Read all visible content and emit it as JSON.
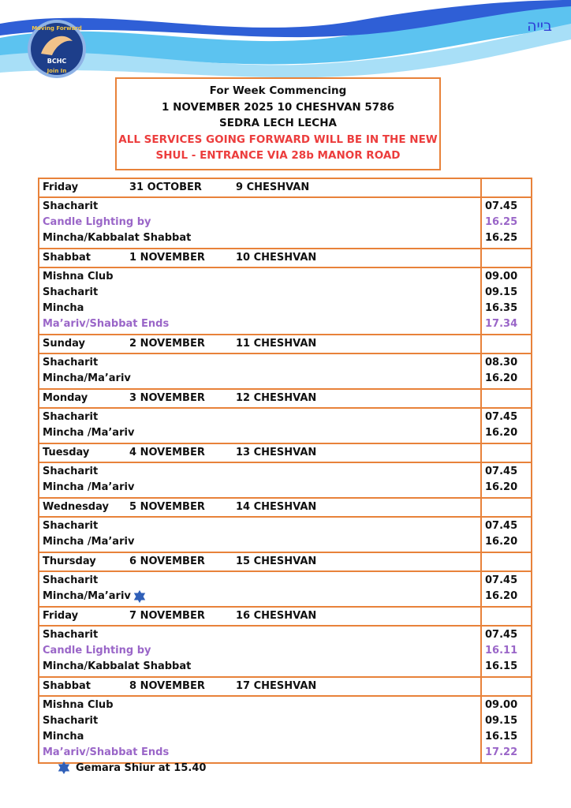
{
  "brand": {
    "hebrew": "בייה",
    "logo_top": "Moving Forward",
    "logo_middle": "BCHC",
    "logo_bottom": "Join In"
  },
  "header": {
    "title": "For Week Commencing",
    "dates": "1 NOVEMBER 2025  10 CHESHVAN 5786",
    "sedra": "SEDRA LECH LECHA",
    "notice": [
      "ALL SERVICES GOING FORWARD WILL BE IN THE NEW",
      "SHUL - ENTRANCE VIA 28b MANOR ROAD"
    ]
  },
  "days": [
    {
      "day": "Friday",
      "date": "31 OCTOBER",
      "hebrew_date": "9 CHESHVAN",
      "items": [
        {
          "name": "Shacharit",
          "time": "07.45"
        },
        {
          "name": "Candle Lighting by",
          "time": "16.25",
          "highlight": true
        },
        {
          "name": "Mincha/Kabbalat Shabbat",
          "time": "16.25"
        }
      ]
    },
    {
      "day": "Shabbat",
      "date": "1 NOVEMBER",
      "hebrew_date": "10 CHESHVAN",
      "items": [
        {
          "name": "Mishna Club",
          "time": "09.00"
        },
        {
          "name": "Shacharit",
          "time": "09.15"
        },
        {
          "name": "Mincha",
          "time": "16.35"
        },
        {
          "name": "Ma’ariv/Shabbat Ends",
          "time": "17.34",
          "highlight": true
        }
      ]
    },
    {
      "day": "Sunday",
      "date": "2 NOVEMBER",
      "hebrew_date": "11 CHESHVAN",
      "items": [
        {
          "name": "Shacharit",
          "time": "08.30"
        },
        {
          "name": "Mincha/Ma’ariv",
          "time": "16.20"
        }
      ]
    },
    {
      "day": "Monday",
      "date": "3 NOVEMBER",
      "hebrew_date": "12 CHESHVAN",
      "items": [
        {
          "name": "Shacharit",
          "time": "07.45"
        },
        {
          "name": "Mincha /Ma’ariv",
          "time": "16.20"
        }
      ]
    },
    {
      "day": "Tuesday",
      "date": "4 NOVEMBER",
      "hebrew_date": "13 CHESHVAN",
      "items": [
        {
          "name": "Shacharit",
          "time": "07.45"
        },
        {
          "name": "Mincha /Ma’ariv",
          "time": "16.20"
        }
      ]
    },
    {
      "day": "Wednesday",
      "date": "5 NOVEMBER",
      "hebrew_date": "14 CHESHVAN",
      "items": [
        {
          "name": "Shacharit",
          "time": "07.45"
        },
        {
          "name": "Mincha /Ma’ariv",
          "time": "16.20"
        }
      ]
    },
    {
      "day": "Thursday",
      "date": "6 NOVEMBER",
      "hebrew_date": "15 CHESHVAN",
      "items": [
        {
          "name": "Shacharit",
          "time": "07.45"
        },
        {
          "name": "Mincha/Ma’ariv",
          "time": "16.20",
          "star": true
        }
      ]
    },
    {
      "day": "Friday",
      "date": "7 NOVEMBER",
      "hebrew_date": "16 CHESHVAN",
      "items": [
        {
          "name": "Shacharit",
          "time": "07.45"
        },
        {
          "name": "Candle Lighting by",
          "time": "16.11",
          "highlight": true
        },
        {
          "name": "Mincha/Kabbalat Shabbat",
          "time": "16.15"
        }
      ]
    },
    {
      "day": "Shabbat",
      "date": "8 NOVEMBER",
      "hebrew_date": "17 CHESHVAN",
      "items": [
        {
          "name": "Mishna Club",
          "time": "09.00"
        },
        {
          "name": "Shacharit",
          "time": "09.15"
        },
        {
          "name": "Mincha",
          "time": "16.15"
        },
        {
          "name": "Ma’ariv/Shabbat Ends",
          "time": "17.22",
          "highlight": true
        }
      ]
    }
  ],
  "footnote": "Gemara Shiur at 15.40"
}
